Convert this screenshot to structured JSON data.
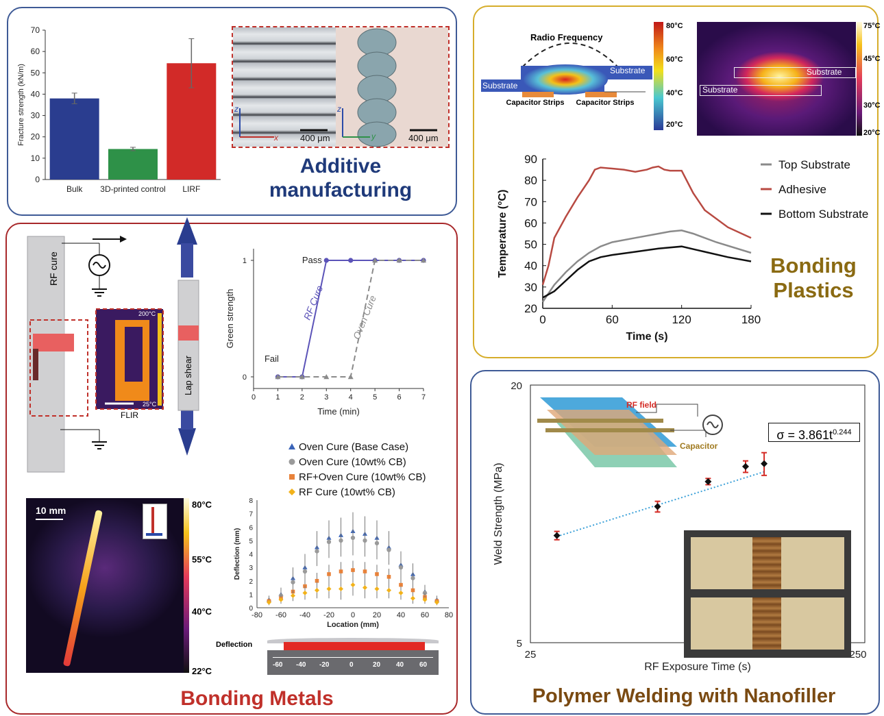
{
  "colors": {
    "blue_border": "#3e5a96",
    "gold_border": "#d6ad2a",
    "red_border": "#a8282a",
    "title_blue": "#1f3a7a",
    "title_gold": "#8a6a12",
    "title_red": "#c0302a",
    "title_brown": "#7a4a12"
  },
  "additive": {
    "title": "Additive manufacturing",
    "scale_left": "400 μm",
    "scale_right": "400 μm",
    "axis_z": "z",
    "axis_x": "x",
    "axis_y": "y"
  },
  "bonding_plastics": {
    "title": "Bonding Plastics",
    "schematic": {
      "radio_frequency": "Radio Frequency",
      "substrate": "Substrate",
      "capacitor_strips": "Capacitor Strips"
    },
    "colorbar_left": [
      "80°C",
      "60°C",
      "40°C",
      "20°C"
    ],
    "colorbar_right": [
      "75°C",
      "45°C",
      "30°C",
      "20°C"
    ]
  },
  "bonding_metals": {
    "title": "Bonding Metals",
    "rf_cure": "RF cure",
    "lap_shear": "Lap shear",
    "flir": "FLIR",
    "flir_max": "200°C",
    "flir_min": "25°C",
    "thermal_scale": "10 mm",
    "thermal_colorbar": [
      "80°C",
      "55°C",
      "40°C",
      "22°C"
    ],
    "deflection_label": "Deflection",
    "bar_ticks": [
      "-60",
      "-40",
      "-20",
      "0",
      "20",
      "40",
      "60"
    ]
  },
  "polymer_welding": {
    "title": "Polymer Welding with Nanofiller",
    "rf_field": "RF field",
    "capacitor": "Capacitor",
    "equation_base": "σ = 3.861t",
    "equation_exp": "0.244"
  },
  "chart_data": [
    {
      "id": "fracture",
      "type": "bar",
      "categories": [
        "Bulk",
        "3D-printed control",
        "LIRF"
      ],
      "values": [
        38,
        14.3,
        54.5
      ],
      "errors": [
        2.5,
        0.8,
        11.5
      ],
      "colors": [
        "#2a3d8f",
        "#2e9148",
        "#d22a28"
      ],
      "ylabel": "Fracture strength (kN/m)",
      "yticks": [
        0,
        10,
        20,
        30,
        40,
        50,
        60,
        70
      ],
      "ylim": [
        0,
        70
      ]
    },
    {
      "id": "temperature",
      "type": "line",
      "xlabel": "Time (s)",
      "ylabel": "Temperature (°C)",
      "xticks": [
        0,
        60,
        120,
        180
      ],
      "yticks": [
        20,
        30,
        40,
        50,
        60,
        70,
        80,
        90
      ],
      "xlim": [
        0,
        180
      ],
      "ylim": [
        20,
        90
      ],
      "legend": "right",
      "series": [
        {
          "name": "Top Substrate",
          "color": "#8a8a8a",
          "x": [
            0,
            5,
            10,
            20,
            30,
            40,
            50,
            60,
            80,
            100,
            110,
            120,
            130,
            150,
            180
          ],
          "y": [
            23,
            27,
            31,
            37,
            42,
            46,
            49,
            51,
            53,
            55,
            56,
            56.5,
            55,
            51,
            46
          ]
        },
        {
          "name": "Adhesive",
          "color": "#b84a42",
          "x": [
            0,
            5,
            10,
            20,
            30,
            40,
            45,
            50,
            60,
            70,
            80,
            90,
            95,
            100,
            105,
            110,
            115,
            120,
            130,
            140,
            160,
            180
          ],
          "y": [
            31,
            40,
            53,
            63,
            72,
            80,
            85,
            86,
            85.5,
            85,
            84,
            85,
            86,
            86.5,
            85,
            84.5,
            84.5,
            84.5,
            74,
            66,
            58,
            53
          ]
        },
        {
          "name": "Bottom Substrate",
          "color": "#111111",
          "x": [
            0,
            10,
            20,
            30,
            40,
            50,
            60,
            80,
            100,
            120,
            140,
            160,
            180
          ],
          "y": [
            25,
            28,
            33,
            38,
            42,
            44,
            45,
            46.5,
            48,
            49,
            46.5,
            44,
            42
          ]
        }
      ]
    },
    {
      "id": "green_strength",
      "type": "line",
      "xlabel": "Time (min)",
      "ylabel": "Green strength",
      "xticks": [
        0,
        1,
        2,
        3,
        4,
        5,
        6,
        7
      ],
      "yticks": [
        0,
        1
      ],
      "xlim": [
        0,
        7
      ],
      "ylim": [
        -0.1,
        1.1
      ],
      "annotations": [
        "Pass",
        "Fail"
      ],
      "series": [
        {
          "name": "RF Cure",
          "color": "#5b53b8",
          "style": "solid",
          "marker": "circle",
          "x": [
            1,
            2,
            3,
            4,
            5,
            6,
            7
          ],
          "y": [
            0,
            0,
            1,
            1,
            1,
            1,
            1
          ]
        },
        {
          "name": "Oven Cure",
          "color": "#8a8a8a",
          "style": "dashed",
          "marker": "triangle",
          "x": [
            1,
            2,
            3,
            4,
            5,
            6,
            7
          ],
          "y": [
            0,
            0,
            0,
            0,
            1,
            1,
            1
          ]
        }
      ]
    },
    {
      "id": "deflection",
      "type": "scatter",
      "xlabel": "Location (mm)",
      "ylabel": "Deflection (mm)",
      "xticks": [
        -80,
        -60,
        -40,
        -20,
        0,
        20,
        40,
        60,
        80
      ],
      "yticks": [
        0,
        1,
        2,
        3,
        4,
        5,
        6,
        7,
        8
      ],
      "xlim": [
        -80,
        80
      ],
      "ylim": [
        0,
        8
      ],
      "legend": "top",
      "x": [
        -70,
        -60,
        -50,
        -40,
        -30,
        -20,
        -10,
        0,
        10,
        20,
        30,
        40,
        50,
        60,
        70
      ],
      "series": [
        {
          "name": "Oven Cure (Base Case)",
          "color": "#3a64b8",
          "marker": "triangle",
          "y": [
            0.6,
            1.0,
            2.2,
            3.0,
            4.5,
            5.2,
            5.4,
            5.7,
            5.5,
            5.2,
            4.5,
            3.2,
            2.5,
            1.2,
            0.6
          ],
          "err": [
            0.3,
            0.5,
            0.8,
            1.0,
            1.2,
            1.3,
            1.3,
            1.4,
            1.3,
            1.3,
            1.2,
            1.0,
            0.8,
            0.5,
            0.3
          ]
        },
        {
          "name": "Oven Cure (10wt% CB)",
          "color": "#9a9a9a",
          "marker": "circle",
          "y": [
            0.5,
            0.9,
            1.9,
            2.7,
            4.2,
            4.9,
            5.0,
            5.2,
            5.0,
            4.8,
            4.3,
            3.0,
            2.2,
            1.1,
            0.5
          ],
          "err": [
            0.3,
            0.4,
            0.7,
            0.9,
            1.1,
            1.2,
            1.2,
            1.3,
            1.2,
            1.2,
            1.1,
            0.9,
            0.7,
            0.4,
            0.3
          ]
        },
        {
          "name": "RF+Oven Cure (10wt% CB)",
          "color": "#e8823a",
          "marker": "square",
          "y": [
            0.5,
            0.7,
            1.2,
            1.6,
            2.0,
            2.5,
            2.7,
            2.8,
            2.7,
            2.5,
            2.3,
            1.7,
            1.3,
            0.8,
            0.5
          ],
          "err": [
            0.2,
            0.3,
            0.4,
            0.5,
            0.6,
            0.7,
            0.7,
            0.7,
            0.7,
            0.7,
            0.6,
            0.5,
            0.4,
            0.3,
            0.2
          ]
        },
        {
          "name": "RF Cure (10wt% CB)",
          "color": "#f2b21a",
          "marker": "diamond",
          "y": [
            0.4,
            0.6,
            0.9,
            1.1,
            1.3,
            1.4,
            1.4,
            1.7,
            1.5,
            1.4,
            1.3,
            1.1,
            0.7,
            0.6,
            0.4
          ],
          "err": [
            0.2,
            0.3,
            0.4,
            0.5,
            0.6,
            0.7,
            0.8,
            0.8,
            0.8,
            0.7,
            0.6,
            0.5,
            0.4,
            0.3,
            0.2
          ]
        }
      ]
    },
    {
      "id": "weld",
      "type": "scatter",
      "xlabel": "RF Exposure Time (s)",
      "ylabel": "Weld Strength (MPa)",
      "xscale": "log",
      "yscale": "log",
      "xlim": [
        25,
        250
      ],
      "ylim": [
        5,
        20
      ],
      "xticks": [
        25,
        250
      ],
      "yticks": [
        5,
        20
      ],
      "trendline": "dotted",
      "series": [
        {
          "name": "",
          "color": "#111111",
          "x": [
            30,
            60,
            85,
            110,
            125
          ],
          "y": [
            8.9,
            10.4,
            11.9,
            12.9,
            13.1
          ],
          "err": [
            0.2,
            0.3,
            0.2,
            0.4,
            0.8
          ]
        }
      ]
    }
  ]
}
